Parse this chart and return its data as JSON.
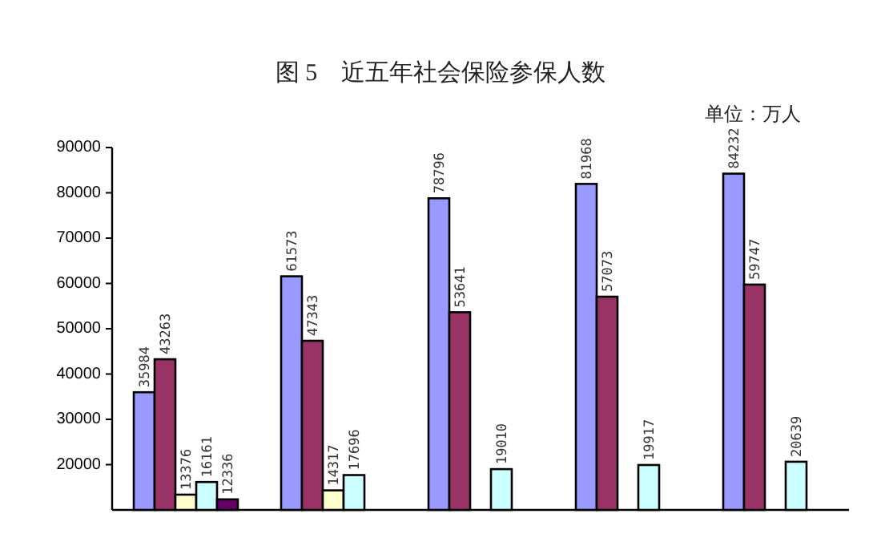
{
  "chart_data": {
    "type": "bar",
    "title": "图 5　近五年社会保险参保人数",
    "annotations": [
      "单位：万人"
    ],
    "categories": [
      null,
      null,
      null,
      null,
      null
    ],
    "series": [
      {
        "color": "#9999ff",
        "values": [
          35984,
          61573,
          78796,
          81968,
          84232
        ]
      },
      {
        "color": "#993366",
        "values": [
          43263,
          47343,
          53641,
          57073,
          59747
        ]
      },
      {
        "color": "#ffffcc",
        "values": [
          13376,
          14317,
          null,
          null,
          null
        ]
      },
      {
        "color": "#ccffff",
        "values": [
          16161,
          17696,
          19010,
          19917,
          20639
        ]
      },
      {
        "color": "#660066",
        "values": [
          12336,
          null,
          null,
          null,
          null
        ]
      }
    ],
    "ylim": [
      10000,
      90000
    ],
    "yticks": [
      20000,
      30000,
      40000,
      50000,
      60000,
      70000,
      80000,
      90000
    ],
    "data_labels": true
  }
}
